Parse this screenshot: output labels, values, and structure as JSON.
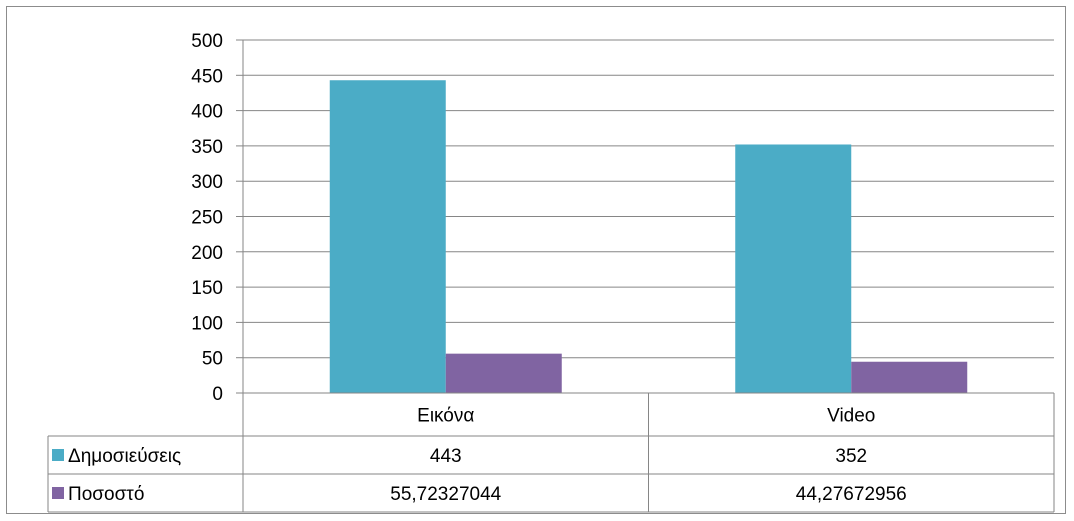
{
  "chart_data": {
    "type": "bar",
    "categories": [
      "Εικόνα",
      "Video"
    ],
    "series": [
      {
        "name": "Δημοσιεύσεις",
        "values": [
          443,
          352
        ],
        "color": "#4bacc6",
        "table_values": [
          "443",
          "352"
        ]
      },
      {
        "name": "Ποσοστό",
        "values": [
          55.72327044,
          44.27672956
        ],
        "color": "#8064a2",
        "table_values": [
          "55,72327044",
          "44,27672956"
        ]
      }
    ],
    "ylim": [
      0,
      500
    ],
    "yticks": [
      "0",
      "50",
      "100",
      "150",
      "200",
      "250",
      "300",
      "350",
      "400",
      "450",
      "500"
    ],
    "grid": true,
    "legend": "data-table",
    "title": "",
    "xlabel": "",
    "ylabel": ""
  },
  "colors": {
    "grid": "#868686",
    "axis": "#868686",
    "border": "#8c8c8c"
  }
}
